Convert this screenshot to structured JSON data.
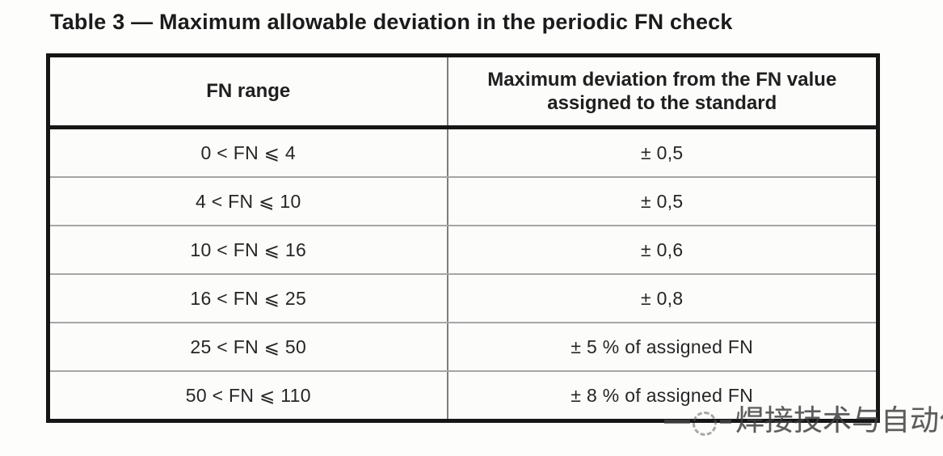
{
  "title": "Table 3 — Maximum allowable deviation in the periodic FN check",
  "table": {
    "headers": {
      "range": "FN range",
      "deviation": "Maximum deviation from the FN value assigned to the standard"
    },
    "rows": [
      {
        "range": "0 < FN ⩽ 4",
        "deviation": "± 0,5"
      },
      {
        "range": "4 < FN ⩽ 10",
        "deviation": "± 0,5"
      },
      {
        "range": "10 < FN ⩽ 16",
        "deviation": "± 0,6"
      },
      {
        "range": "16 < FN ⩽ 25",
        "deviation": "± 0,8"
      },
      {
        "range": "25 < FN ⩽ 50",
        "deviation": "± 5 % of assigned FN"
      },
      {
        "range": "50 < FN ⩽ 110",
        "deviation": "± 8 % of assigned FN"
      }
    ]
  },
  "watermark": {
    "text": "焊接技术与自动化",
    "color": "#3a3a3a"
  },
  "colors": {
    "border": "#161616",
    "row_divider": "#a6a6a6",
    "column_divider": "#7e7e7e",
    "text": "#262626",
    "background": "#fdfdfc"
  }
}
